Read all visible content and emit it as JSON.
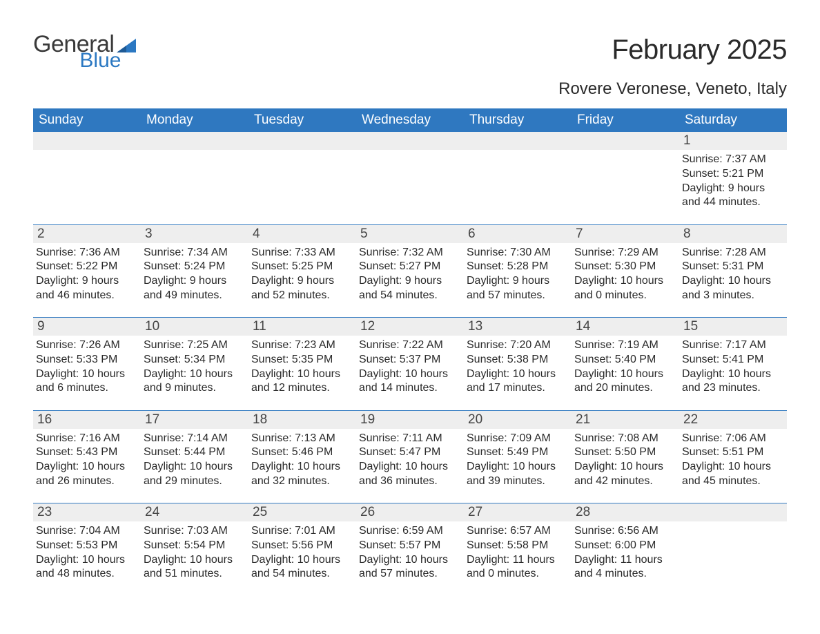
{
  "logo": {
    "line1": "General",
    "line2": "Blue",
    "color1": "#3a3a3a",
    "color2": "#2b78c2"
  },
  "title": "February 2025",
  "location": "Rovere Veronese, Veneto, Italy",
  "colors": {
    "header_bg": "#2f78c0",
    "header_text": "#ffffff",
    "daybar_bg": "#eeeeee",
    "rule": "#2f78c0",
    "text": "#2a2a2a",
    "background": "#ffffff"
  },
  "fonts": {
    "title_size": 40,
    "location_size": 24,
    "dayheader_size": 19,
    "body_size": 16
  },
  "day_headers": [
    "Sunday",
    "Monday",
    "Tuesday",
    "Wednesday",
    "Thursday",
    "Friday",
    "Saturday"
  ],
  "labels": {
    "sunrise": "Sunrise:",
    "sunset": "Sunset:",
    "daylight": "Daylight:"
  },
  "weeks": [
    [
      null,
      null,
      null,
      null,
      null,
      null,
      {
        "n": "1",
        "sunrise": "7:37 AM",
        "sunset": "5:21 PM",
        "daylight": "9 hours and 44 minutes."
      }
    ],
    [
      {
        "n": "2",
        "sunrise": "7:36 AM",
        "sunset": "5:22 PM",
        "daylight": "9 hours and 46 minutes."
      },
      {
        "n": "3",
        "sunrise": "7:34 AM",
        "sunset": "5:24 PM",
        "daylight": "9 hours and 49 minutes."
      },
      {
        "n": "4",
        "sunrise": "7:33 AM",
        "sunset": "5:25 PM",
        "daylight": "9 hours and 52 minutes."
      },
      {
        "n": "5",
        "sunrise": "7:32 AM",
        "sunset": "5:27 PM",
        "daylight": "9 hours and 54 minutes."
      },
      {
        "n": "6",
        "sunrise": "7:30 AM",
        "sunset": "5:28 PM",
        "daylight": "9 hours and 57 minutes."
      },
      {
        "n": "7",
        "sunrise": "7:29 AM",
        "sunset": "5:30 PM",
        "daylight": "10 hours and 0 minutes."
      },
      {
        "n": "8",
        "sunrise": "7:28 AM",
        "sunset": "5:31 PM",
        "daylight": "10 hours and 3 minutes."
      }
    ],
    [
      {
        "n": "9",
        "sunrise": "7:26 AM",
        "sunset": "5:33 PM",
        "daylight": "10 hours and 6 minutes."
      },
      {
        "n": "10",
        "sunrise": "7:25 AM",
        "sunset": "5:34 PM",
        "daylight": "10 hours and 9 minutes."
      },
      {
        "n": "11",
        "sunrise": "7:23 AM",
        "sunset": "5:35 PM",
        "daylight": "10 hours and 12 minutes."
      },
      {
        "n": "12",
        "sunrise": "7:22 AM",
        "sunset": "5:37 PM",
        "daylight": "10 hours and 14 minutes."
      },
      {
        "n": "13",
        "sunrise": "7:20 AM",
        "sunset": "5:38 PM",
        "daylight": "10 hours and 17 minutes."
      },
      {
        "n": "14",
        "sunrise": "7:19 AM",
        "sunset": "5:40 PM",
        "daylight": "10 hours and 20 minutes."
      },
      {
        "n": "15",
        "sunrise": "7:17 AM",
        "sunset": "5:41 PM",
        "daylight": "10 hours and 23 minutes."
      }
    ],
    [
      {
        "n": "16",
        "sunrise": "7:16 AM",
        "sunset": "5:43 PM",
        "daylight": "10 hours and 26 minutes."
      },
      {
        "n": "17",
        "sunrise": "7:14 AM",
        "sunset": "5:44 PM",
        "daylight": "10 hours and 29 minutes."
      },
      {
        "n": "18",
        "sunrise": "7:13 AM",
        "sunset": "5:46 PM",
        "daylight": "10 hours and 32 minutes."
      },
      {
        "n": "19",
        "sunrise": "7:11 AM",
        "sunset": "5:47 PM",
        "daylight": "10 hours and 36 minutes."
      },
      {
        "n": "20",
        "sunrise": "7:09 AM",
        "sunset": "5:49 PM",
        "daylight": "10 hours and 39 minutes."
      },
      {
        "n": "21",
        "sunrise": "7:08 AM",
        "sunset": "5:50 PM",
        "daylight": "10 hours and 42 minutes."
      },
      {
        "n": "22",
        "sunrise": "7:06 AM",
        "sunset": "5:51 PM",
        "daylight": "10 hours and 45 minutes."
      }
    ],
    [
      {
        "n": "23",
        "sunrise": "7:04 AM",
        "sunset": "5:53 PM",
        "daylight": "10 hours and 48 minutes."
      },
      {
        "n": "24",
        "sunrise": "7:03 AM",
        "sunset": "5:54 PM",
        "daylight": "10 hours and 51 minutes."
      },
      {
        "n": "25",
        "sunrise": "7:01 AM",
        "sunset": "5:56 PM",
        "daylight": "10 hours and 54 minutes."
      },
      {
        "n": "26",
        "sunrise": "6:59 AM",
        "sunset": "5:57 PM",
        "daylight": "10 hours and 57 minutes."
      },
      {
        "n": "27",
        "sunrise": "6:57 AM",
        "sunset": "5:58 PM",
        "daylight": "11 hours and 0 minutes."
      },
      {
        "n": "28",
        "sunrise": "6:56 AM",
        "sunset": "6:00 PM",
        "daylight": "11 hours and 4 minutes."
      },
      null
    ]
  ]
}
